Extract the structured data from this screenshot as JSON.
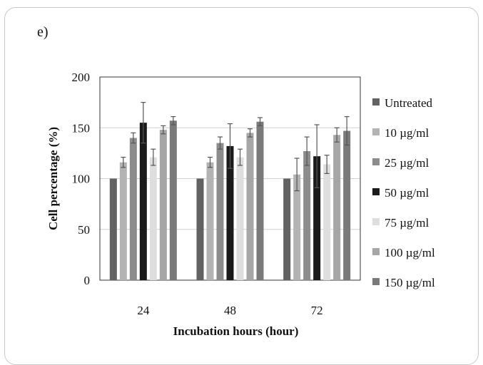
{
  "panel_label": "e)",
  "chart_data": {
    "type": "bar",
    "title": "",
    "xlabel": "Incubation hours (hour)",
    "ylabel": "Cell percentage (%)",
    "ylim": [
      0,
      200
    ],
    "yticks": [
      0,
      50,
      100,
      150,
      200
    ],
    "grid": true,
    "legend_position": "right",
    "categories": [
      "24",
      "48",
      "72"
    ],
    "series": [
      {
        "name": "Untreated",
        "color": "#626262",
        "values": [
          100,
          100,
          100
        ],
        "errors": [
          0,
          0,
          0
        ]
      },
      {
        "name": "10 µg/ml",
        "color": "#b3b3b3",
        "values": [
          116,
          116,
          104
        ],
        "errors": [
          5,
          5,
          16
        ]
      },
      {
        "name": "25 µg/ml",
        "color": "#8c8c8c",
        "values": [
          140,
          135,
          127
        ],
        "errors": [
          5,
          6,
          14
        ]
      },
      {
        "name": "50 µg/ml",
        "color": "#1a1a1a",
        "values": [
          155,
          132,
          122
        ],
        "errors": [
          20,
          22,
          31
        ]
      },
      {
        "name": "75 µg/ml",
        "color": "#dedede",
        "values": [
          121,
          121,
          114
        ],
        "errors": [
          8,
          8,
          9
        ]
      },
      {
        "name": "100 µg/ml",
        "color": "#a6a6a6",
        "values": [
          148,
          145,
          143
        ],
        "errors": [
          4,
          4,
          7
        ]
      },
      {
        "name": "150 µg/ml",
        "color": "#7a7a7a",
        "values": [
          157,
          156,
          147
        ],
        "errors": [
          4,
          4,
          14
        ]
      }
    ]
  }
}
